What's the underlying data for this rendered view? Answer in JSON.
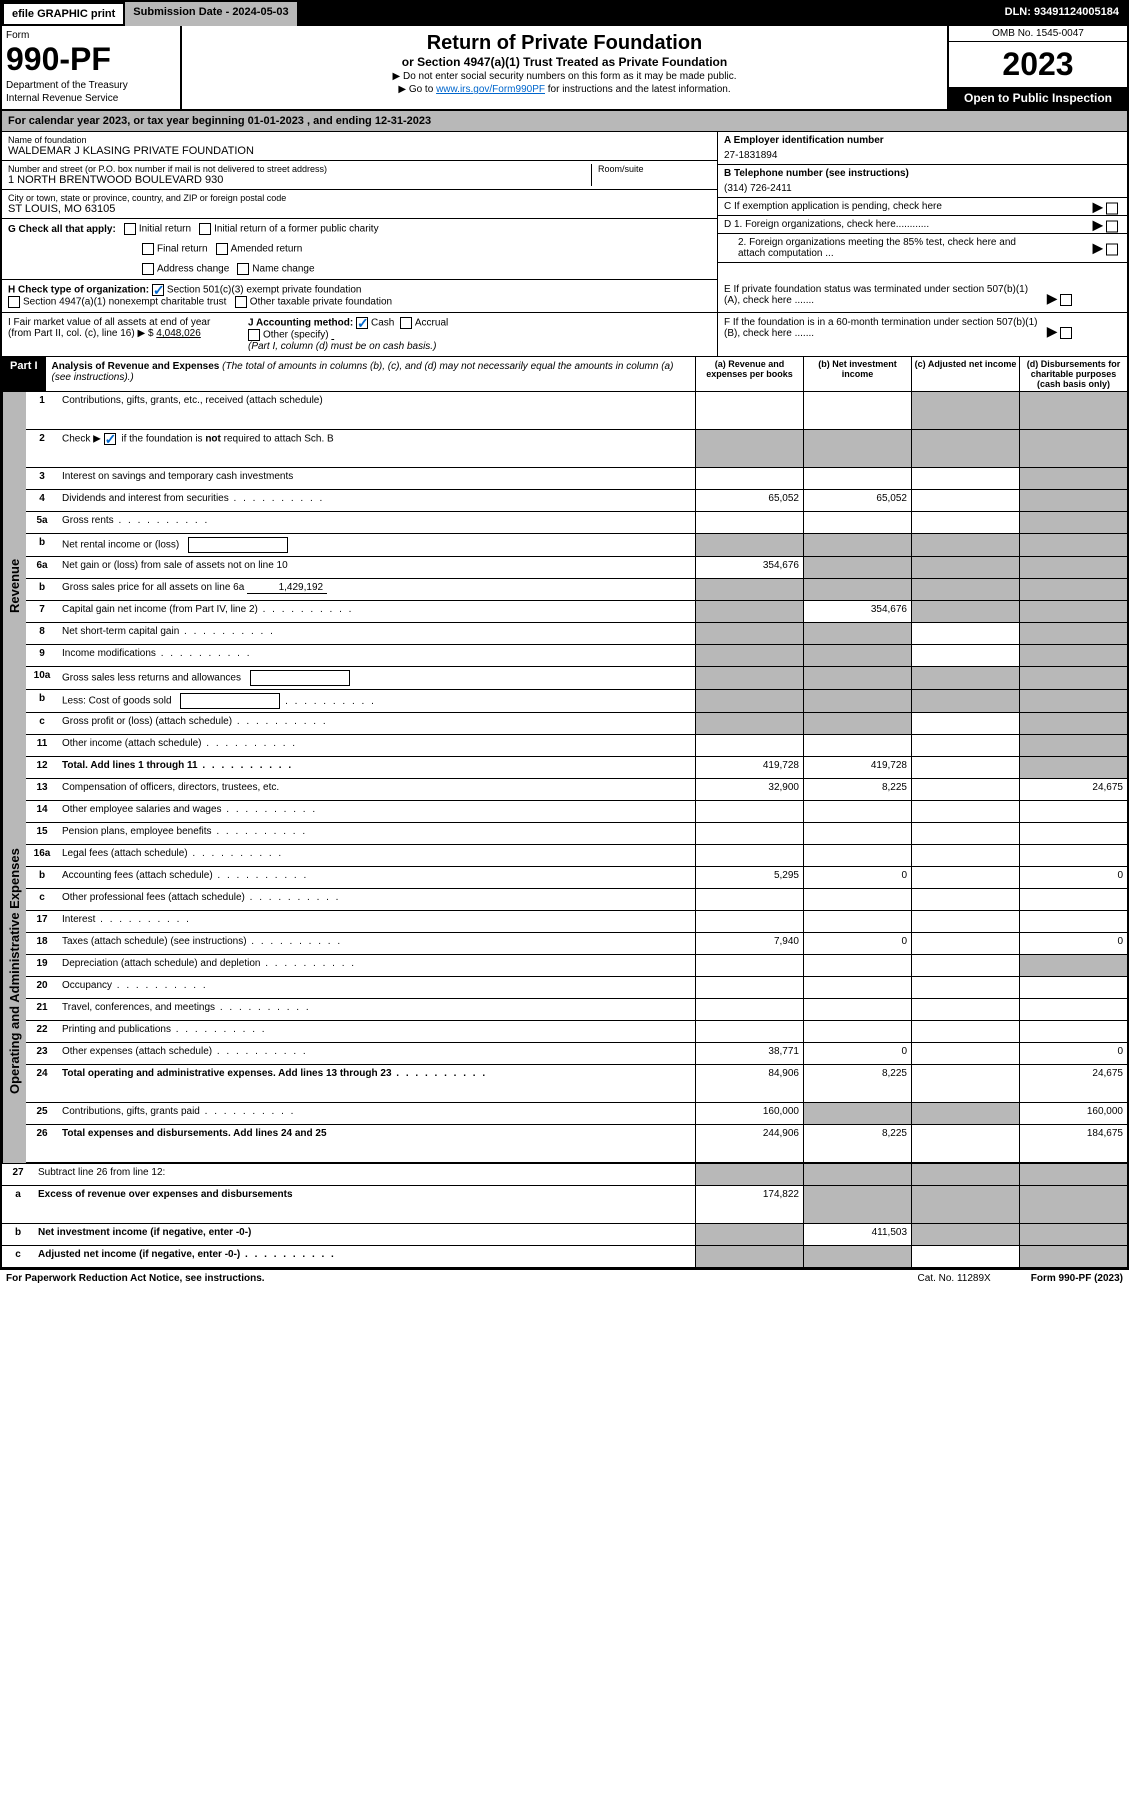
{
  "topbar": {
    "efile": "efile GRAPHIC print",
    "submission": "Submission Date - 2024-05-03",
    "dln": "DLN: 93491124005184"
  },
  "header": {
    "form_label": "Form",
    "form_number": "990-PF",
    "dept1": "Department of the Treasury",
    "dept2": "Internal Revenue Service",
    "title": "Return of Private Foundation",
    "subtitle": "or Section 4947(a)(1) Trust Treated as Private Foundation",
    "note1": "▶ Do not enter social security numbers on this form as it may be made public.",
    "note2_pre": "▶ Go to ",
    "note2_link": "www.irs.gov/Form990PF",
    "note2_post": " for instructions and the latest information.",
    "omb": "OMB No. 1545-0047",
    "year": "2023",
    "inspect": "Open to Public Inspection"
  },
  "calyear": {
    "text_pre": "For calendar year 2023, or tax year beginning ",
    "begin": "01-01-2023",
    "text_mid": " , and ending ",
    "end": "12-31-2023"
  },
  "entity": {
    "name_label": "Name of foundation",
    "name": "WALDEMAR J KLASING PRIVATE FOUNDATION",
    "addr_label": "Number and street (or P.O. box number if mail is not delivered to street address)",
    "addr": "1 NORTH BRENTWOOD BOULEVARD 930",
    "room_label": "Room/suite",
    "city_label": "City or town, state or province, country, and ZIP or foreign postal code",
    "city": "ST LOUIS, MO  63105",
    "a_label": "A Employer identification number",
    "a_val": "27-1831894",
    "b_label": "B Telephone number (see instructions)",
    "b_val": "(314) 726-2411",
    "c_label": "C If exemption application is pending, check here"
  },
  "checks": {
    "g_label": "G Check all that apply:",
    "g_opts": [
      "Initial return",
      "Initial return of a former public charity",
      "Final return",
      "Amended return",
      "Address change",
      "Name change"
    ],
    "h_label": "H Check type of organization:",
    "h_opt1": "Section 501(c)(3) exempt private foundation",
    "h_opt2": "Section 4947(a)(1) nonexempt charitable trust",
    "h_opt3": "Other taxable private foundation",
    "i_label": "I Fair market value of all assets at end of year (from Part II, col. (c), line 16) ▶ $",
    "i_val": "4,048,026",
    "j_label": "J Accounting method:",
    "j_cash": "Cash",
    "j_accrual": "Accrual",
    "j_other": "Other (specify)",
    "j_note": "(Part I, column (d) must be on cash basis.)",
    "d1": "D 1. Foreign organizations, check here............",
    "d2": "2. Foreign organizations meeting the 85% test, check here and attach computation ...",
    "e": "E  If private foundation status was terminated under section 507(b)(1)(A), check here .......",
    "f": "F  If the foundation is in a 60-month termination under section 507(b)(1)(B), check here .......",
    "arrow": "▶"
  },
  "part1": {
    "badge": "Part I",
    "title": "Analysis of Revenue and Expenses",
    "title_note": " (The total of amounts in columns (b), (c), and (d) may not necessarily equal the amounts in column (a) (see instructions).)",
    "col_a": "(a)  Revenue and expenses per books",
    "col_b": "(b)  Net investment income",
    "col_c": "(c)  Adjusted net income",
    "col_d": "(d)  Disbursements for charitable purposes (cash basis only)"
  },
  "sections": {
    "revenue": "Revenue",
    "opex": "Operating and Administrative Expenses"
  },
  "lines": [
    {
      "n": "1",
      "label": "Contributions, gifts, grants, etc., received (attach schedule)",
      "a": "",
      "b": "",
      "c": "g",
      "d": "g",
      "tall": true
    },
    {
      "n": "2",
      "label": "Check ▶ ☑ if the foundation is not required to attach Sch. B",
      "a": "g",
      "b": "g",
      "c": "g",
      "d": "g",
      "tall": true,
      "check": true
    },
    {
      "n": "3",
      "label": "Interest on savings and temporary cash investments",
      "a": "",
      "b": "",
      "c": "",
      "d": "g"
    },
    {
      "n": "4",
      "label": "Dividends and interest from securities",
      "a": "65,052",
      "b": "65,052",
      "c": "",
      "d": "g",
      "dots": true
    },
    {
      "n": "5a",
      "label": "Gross rents",
      "a": "",
      "b": "",
      "c": "",
      "d": "g",
      "dots": true
    },
    {
      "n": "b",
      "label": "Net rental income or (loss)",
      "a": "g",
      "b": "g",
      "c": "g",
      "d": "g",
      "inline": true
    },
    {
      "n": "6a",
      "label": "Net gain or (loss) from sale of assets not on line 10",
      "a": "354,676",
      "b": "g",
      "c": "g",
      "d": "g"
    },
    {
      "n": "b",
      "label": "Gross sales price for all assets on line 6a",
      "a": "g",
      "b": "g",
      "c": "g",
      "d": "g",
      "inlineval": "1,429,192"
    },
    {
      "n": "7",
      "label": "Capital gain net income (from Part IV, line 2)",
      "a": "g",
      "b": "354,676",
      "c": "g",
      "d": "g",
      "dots": true
    },
    {
      "n": "8",
      "label": "Net short-term capital gain",
      "a": "g",
      "b": "g",
      "c": "",
      "d": "g",
      "dots": true
    },
    {
      "n": "9",
      "label": "Income modifications",
      "a": "g",
      "b": "g",
      "c": "",
      "d": "g",
      "dots": true
    },
    {
      "n": "10a",
      "label": "Gross sales less returns and allowances",
      "a": "g",
      "b": "g",
      "c": "g",
      "d": "g",
      "inline": true
    },
    {
      "n": "b",
      "label": "Less: Cost of goods sold",
      "a": "g",
      "b": "g",
      "c": "g",
      "d": "g",
      "inline": true,
      "dots": true
    },
    {
      "n": "c",
      "label": "Gross profit or (loss) (attach schedule)",
      "a": "g",
      "b": "g",
      "c": "",
      "d": "g",
      "dots": true
    },
    {
      "n": "11",
      "label": "Other income (attach schedule)",
      "a": "",
      "b": "",
      "c": "",
      "d": "g",
      "dots": true
    },
    {
      "n": "12",
      "label": "Total. Add lines 1 through 11",
      "a": "419,728",
      "b": "419,728",
      "c": "",
      "d": "g",
      "bold": true,
      "dots": true
    }
  ],
  "oplines": [
    {
      "n": "13",
      "label": "Compensation of officers, directors, trustees, etc.",
      "a": "32,900",
      "b": "8,225",
      "c": "",
      "d": "24,675"
    },
    {
      "n": "14",
      "label": "Other employee salaries and wages",
      "a": "",
      "b": "",
      "c": "",
      "d": "",
      "dots": true
    },
    {
      "n": "15",
      "label": "Pension plans, employee benefits",
      "a": "",
      "b": "",
      "c": "",
      "d": "",
      "dots": true
    },
    {
      "n": "16a",
      "label": "Legal fees (attach schedule)",
      "a": "",
      "b": "",
      "c": "",
      "d": "",
      "dots": true
    },
    {
      "n": "b",
      "label": "Accounting fees (attach schedule)",
      "a": "5,295",
      "b": "0",
      "c": "",
      "d": "0",
      "dots": true
    },
    {
      "n": "c",
      "label": "Other professional fees (attach schedule)",
      "a": "",
      "b": "",
      "c": "",
      "d": "",
      "dots": true
    },
    {
      "n": "17",
      "label": "Interest",
      "a": "",
      "b": "",
      "c": "",
      "d": "",
      "dots": true
    },
    {
      "n": "18",
      "label": "Taxes (attach schedule) (see instructions)",
      "a": "7,940",
      "b": "0",
      "c": "",
      "d": "0",
      "dots": true
    },
    {
      "n": "19",
      "label": "Depreciation (attach schedule) and depletion",
      "a": "",
      "b": "",
      "c": "",
      "d": "g",
      "dots": true
    },
    {
      "n": "20",
      "label": "Occupancy",
      "a": "",
      "b": "",
      "c": "",
      "d": "",
      "dots": true
    },
    {
      "n": "21",
      "label": "Travel, conferences, and meetings",
      "a": "",
      "b": "",
      "c": "",
      "d": "",
      "dots": true
    },
    {
      "n": "22",
      "label": "Printing and publications",
      "a": "",
      "b": "",
      "c": "",
      "d": "",
      "dots": true
    },
    {
      "n": "23",
      "label": "Other expenses (attach schedule)",
      "a": "38,771",
      "b": "0",
      "c": "",
      "d": "0",
      "dots": true
    },
    {
      "n": "24",
      "label": "Total operating and administrative expenses. Add lines 13 through 23",
      "a": "84,906",
      "b": "8,225",
      "c": "",
      "d": "24,675",
      "bold": true,
      "tall": true,
      "dots": true
    },
    {
      "n": "25",
      "label": "Contributions, gifts, grants paid",
      "a": "160,000",
      "b": "g",
      "c": "g",
      "d": "160,000",
      "dots": true
    },
    {
      "n": "26",
      "label": "Total expenses and disbursements. Add lines 24 and 25",
      "a": "244,906",
      "b": "8,225",
      "c": "",
      "d": "184,675",
      "bold": true,
      "tall": true
    }
  ],
  "bottomlines": [
    {
      "n": "27",
      "label": "Subtract line 26 from line 12:",
      "a": "g",
      "b": "g",
      "c": "g",
      "d": "g"
    },
    {
      "n": "a",
      "label": "Excess of revenue over expenses and disbursements",
      "a": "174,822",
      "b": "g",
      "c": "g",
      "d": "g",
      "bold": true,
      "tall": true
    },
    {
      "n": "b",
      "label": "Net investment income (if negative, enter -0-)",
      "a": "g",
      "b": "411,503",
      "c": "g",
      "d": "g",
      "bold": true
    },
    {
      "n": "c",
      "label": "Adjusted net income (if negative, enter -0-)",
      "a": "g",
      "b": "g",
      "c": "",
      "d": "g",
      "bold": true,
      "dots": true
    }
  ],
  "footer": {
    "pra": "For Paperwork Reduction Act Notice, see instructions.",
    "cat": "Cat. No. 11289X",
    "formref": "Form 990-PF (2023)"
  }
}
